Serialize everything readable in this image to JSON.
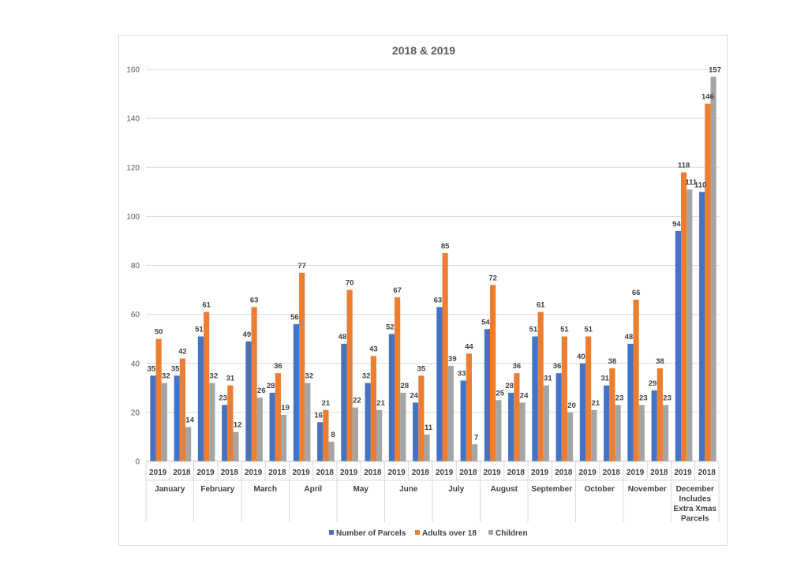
{
  "chart_data": {
    "type": "bar",
    "title": "2018 & 2019",
    "ylim": [
      0,
      160
    ],
    "yticks": [
      0,
      20,
      40,
      60,
      80,
      100,
      120,
      140,
      160
    ],
    "grid": true,
    "legend_position": "bottom",
    "groups": [
      {
        "label": [
          "January"
        ],
        "years": [
          "2019",
          "2018"
        ]
      },
      {
        "label": [
          "February"
        ],
        "years": [
          "2019",
          "2018"
        ]
      },
      {
        "label": [
          "March"
        ],
        "years": [
          "2019",
          "2018"
        ]
      },
      {
        "label": [
          "April"
        ],
        "years": [
          "2019",
          "2018"
        ]
      },
      {
        "label": [
          "May"
        ],
        "years": [
          "2019",
          "2018"
        ]
      },
      {
        "label": [
          "June"
        ],
        "years": [
          "2019",
          "2018"
        ]
      },
      {
        "label": [
          "July"
        ],
        "years": [
          "2019",
          "2018"
        ]
      },
      {
        "label": [
          "August"
        ],
        "years": [
          "2019",
          "2018"
        ]
      },
      {
        "label": [
          "September"
        ],
        "years": [
          "2019",
          "2018"
        ]
      },
      {
        "label": [
          "October"
        ],
        "years": [
          "2019",
          "2018"
        ]
      },
      {
        "label": [
          "November"
        ],
        "years": [
          "2019",
          "2018"
        ]
      },
      {
        "label": [
          "December",
          "Includes",
          "Extra Xmas",
          "Parcels"
        ],
        "years": [
          "2019",
          "2018"
        ]
      }
    ],
    "series": [
      {
        "name": "Number of Parcels",
        "color": "#4472c4",
        "values": [
          35,
          35,
          51,
          23,
          49,
          28,
          56,
          16,
          48,
          32,
          52,
          24,
          63,
          33,
          54,
          28,
          51,
          36,
          40,
          31,
          48,
          29,
          94,
          110
        ]
      },
      {
        "name": "Adults over 18",
        "color": "#ed7d31",
        "values": [
          50,
          42,
          61,
          31,
          63,
          36,
          77,
          21,
          70,
          43,
          67,
          35,
          85,
          44,
          72,
          36,
          61,
          51,
          51,
          38,
          66,
          38,
          118,
          146
        ]
      },
      {
        "name": "Children",
        "color": "#a5a5a5",
        "values": [
          32,
          14,
          32,
          12,
          26,
          19,
          32,
          8,
          22,
          21,
          28,
          11,
          39,
          7,
          25,
          24,
          31,
          20,
          21,
          23,
          23,
          23,
          111,
          157
        ]
      }
    ]
  }
}
